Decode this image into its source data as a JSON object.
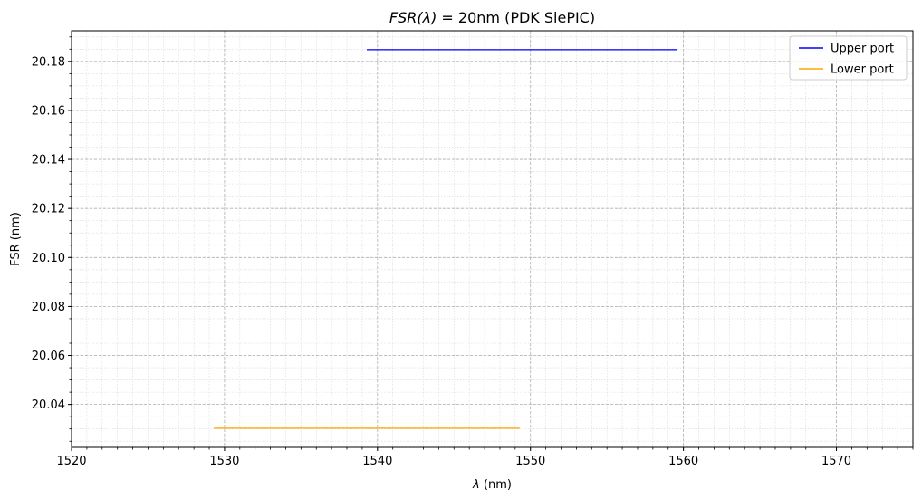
{
  "chart_data": {
    "type": "line",
    "title_italic": "FSR(λ)",
    "title_rest": " = 20nm (PDK SiePIC)",
    "xlabel_italic": "λ",
    "xlabel_rest": " (nm)",
    "ylabel": "FSR (nm)",
    "xlim": [
      1520,
      1575
    ],
    "ylim": [
      20.0225,
      20.1925
    ],
    "xticks": [
      1520,
      1530,
      1540,
      1550,
      1560,
      1570
    ],
    "yticks": [
      20.04,
      20.06,
      20.08,
      20.1,
      20.12,
      20.14,
      20.16,
      20.18
    ],
    "xtick_labels": [
      "1520",
      "1530",
      "1540",
      "1550",
      "1560",
      "1570"
    ],
    "ytick_labels": [
      "20.04",
      "20.06",
      "20.08",
      "20.10",
      "20.12",
      "20.14",
      "20.16",
      "20.18"
    ],
    "x_minor_step": 1,
    "y_minor_step": 0.005,
    "grid": true,
    "legend_position": "top-right",
    "series": [
      {
        "name": "Upper port",
        "color": "#0000ff",
        "x": [
          1539.3,
          1559.6
        ],
        "y": [
          20.1848,
          20.1848
        ]
      },
      {
        "name": "Lower port",
        "color": "#ffa500",
        "x": [
          1529.3,
          1549.3
        ],
        "y": [
          20.0303,
          20.0303
        ]
      }
    ]
  }
}
